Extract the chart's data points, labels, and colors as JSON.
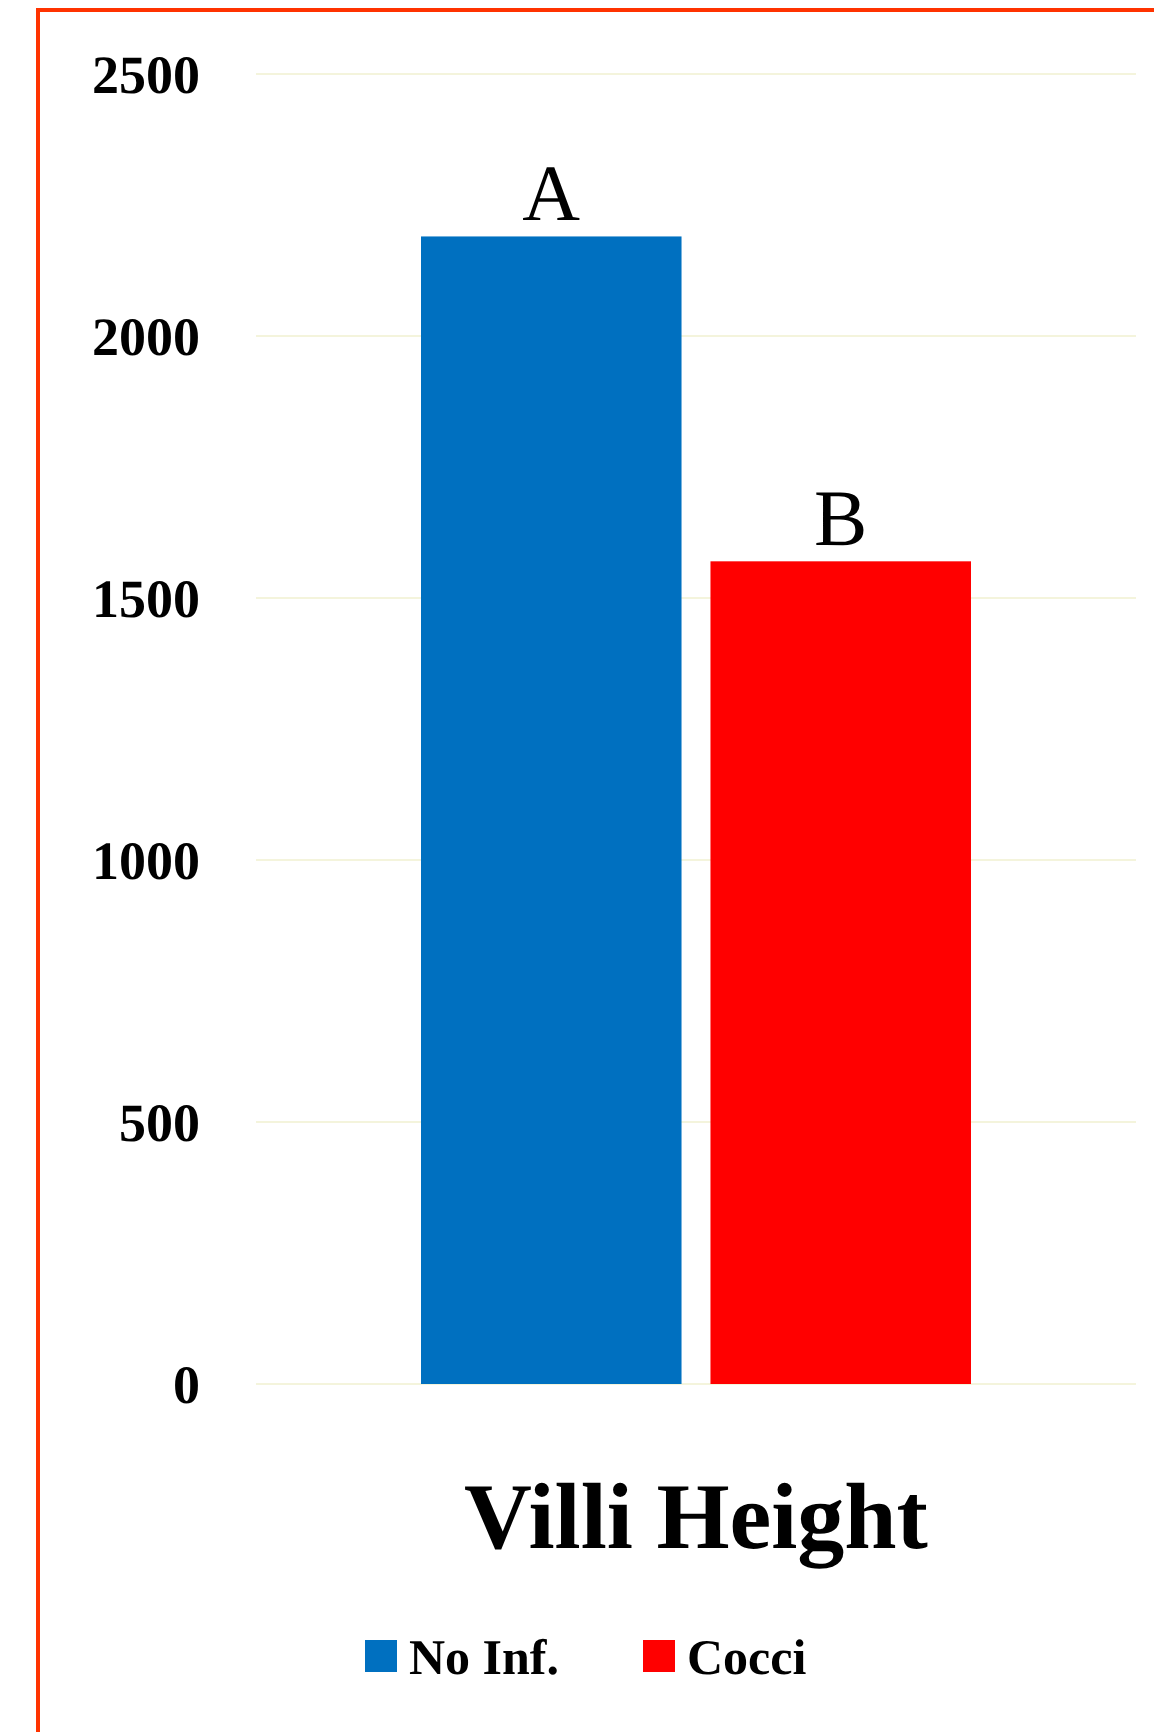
{
  "chart_data": {
    "type": "bar",
    "categories": [
      "Villi Height"
    ],
    "series": [
      {
        "name": "No Inf.",
        "color": "#0070c0",
        "values": [
          2190
        ],
        "value_labels": [
          "A"
        ]
      },
      {
        "name": "Cocci",
        "color": "#ff0000",
        "values": [
          1570
        ],
        "value_labels": [
          "B"
        ]
      }
    ],
    "ylim": [
      0,
      2500
    ],
    "yticks": [
      0,
      500,
      1000,
      1500,
      2000,
      2500
    ],
    "grid": "y",
    "legend": "bottom"
  }
}
